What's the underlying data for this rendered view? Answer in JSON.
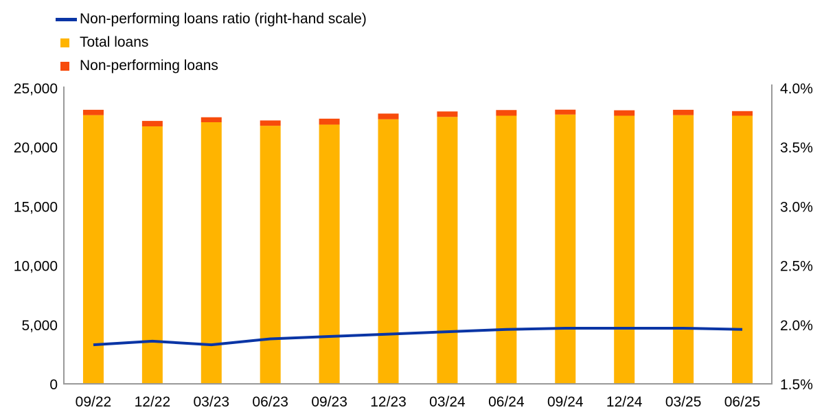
{
  "legend": {
    "ratio_label": "Non-performing loans ratio (right-hand scale)",
    "total_loans_label": "Total loans",
    "npl_label": "Non-performing loans"
  },
  "chart_data": {
    "type": "bar",
    "stacked": true,
    "grid": false,
    "legend_position": "top-left",
    "categories": [
      "09/22",
      "12/22",
      "03/23",
      "06/23",
      "09/23",
      "12/23",
      "03/24",
      "06/24",
      "09/24",
      "12/24",
      "03/25",
      "06/25"
    ],
    "series": [
      {
        "name": "Total loans",
        "type": "bar",
        "axis": "left",
        "color": "#FFB400",
        "values": [
          22700,
          21750,
          22100,
          21800,
          21900,
          22350,
          22550,
          22650,
          22750,
          22650,
          22700,
          22650
        ]
      },
      {
        "name": "Non-performing loans",
        "type": "bar",
        "axis": "left",
        "color": "#F74B0B",
        "values": [
          450,
          460,
          420,
          450,
          500,
          480,
          460,
          480,
          410,
          460,
          450,
          390
        ]
      },
      {
        "name": "Non-performing loans ratio (right-hand scale)",
        "type": "line",
        "axis": "right",
        "color": "#0A35A5",
        "values": [
          1.83,
          1.86,
          1.83,
          1.88,
          1.9,
          1.92,
          1.94,
          1.96,
          1.97,
          1.97,
          1.97,
          1.96
        ]
      }
    ],
    "left_axis": {
      "min": 0,
      "max": 25000,
      "tick_step": 5000,
      "tick_labels": [
        "0",
        "5,000",
        "10,000",
        "15,000",
        "20,000",
        "25,000"
      ]
    },
    "right_axis": {
      "min": 1.5,
      "max": 4.0,
      "tick_step": 0.5,
      "tick_labels": [
        "1.5%",
        "2.0%",
        "2.5%",
        "3.0%",
        "3.5%",
        "4.0%"
      ]
    },
    "axis_color": "#999999",
    "text_color": "#000000"
  }
}
